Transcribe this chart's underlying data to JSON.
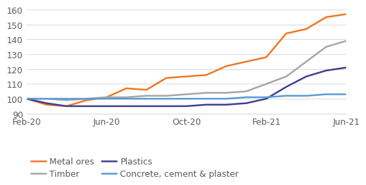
{
  "x_ticks_labels": [
    "Feb-20",
    "Jun-20",
    "Oct-20",
    "Feb-21",
    "Jun-21"
  ],
  "x_ticks_positions": [
    0,
    4,
    8,
    12,
    16
  ],
  "series": {
    "Metal ores": {
      "color": "#F07820",
      "values": [
        100,
        96,
        95,
        99,
        101,
        107,
        106,
        114,
        115,
        116,
        122,
        125,
        128,
        144,
        147,
        155,
        157
      ]
    },
    "Timber": {
      "color": "#A6A6A6",
      "values": [
        100,
        100,
        99,
        100,
        101,
        101,
        102,
        102,
        103,
        104,
        104,
        105,
        110,
        115,
        125,
        135,
        139
      ]
    },
    "Plastics": {
      "color": "#3F3F91",
      "values": [
        100,
        97,
        95,
        95,
        95,
        95,
        95,
        95,
        95,
        96,
        96,
        97,
        100,
        108,
        115,
        119,
        121
      ]
    },
    "Concrete, cement & plaster": {
      "color": "#5B9BD5",
      "values": [
        100,
        100,
        100,
        100,
        100,
        100,
        100,
        100,
        100,
        100,
        100,
        101,
        101,
        102,
        102,
        103,
        103
      ]
    }
  },
  "ylim": [
    90,
    160
  ],
  "yticks": [
    90,
    100,
    110,
    120,
    130,
    140,
    150,
    160
  ],
  "n_points": 17,
  "background_color": "#FFFFFF",
  "grid_color": "#D9D9D9",
  "plot_order": [
    "Metal ores",
    "Timber",
    "Plastics",
    "Concrete, cement & plaster"
  ],
  "legend_col1": [
    "Metal ores",
    "Plastics"
  ],
  "legend_col2": [
    "Timber",
    "Concrete, cement & plaster"
  ],
  "tick_fontsize": 9,
  "tick_color": "#595959",
  "legend_fontsize": 9,
  "linewidth": 1.8
}
